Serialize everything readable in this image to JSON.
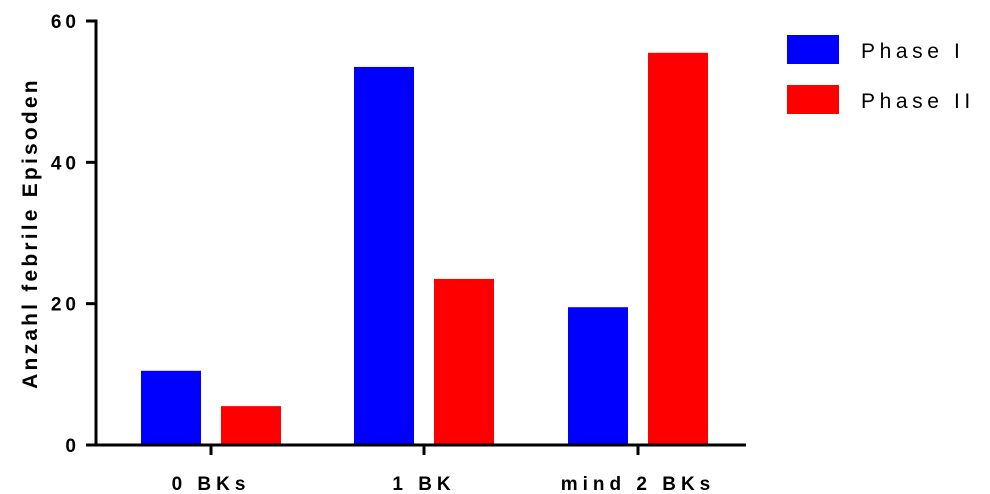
{
  "chart_data": {
    "type": "bar",
    "categories": [
      "0 BKs",
      "1 BK",
      "mind 2 BKs"
    ],
    "series": [
      {
        "name": "Phase I",
        "color": "#0000ff",
        "values": [
          10.5,
          53.5,
          19.5
        ]
      },
      {
        "name": "Phase II",
        "color": "#ff0000",
        "values": [
          5.5,
          23.5,
          55.5
        ]
      }
    ],
    "title": "",
    "xlabel": "",
    "ylabel": "Anzahl febrile Episoden",
    "ylim": [
      0,
      60
    ],
    "yticks": [
      0,
      20,
      40,
      60
    ],
    "grid": false,
    "legend_position": "top-right"
  }
}
